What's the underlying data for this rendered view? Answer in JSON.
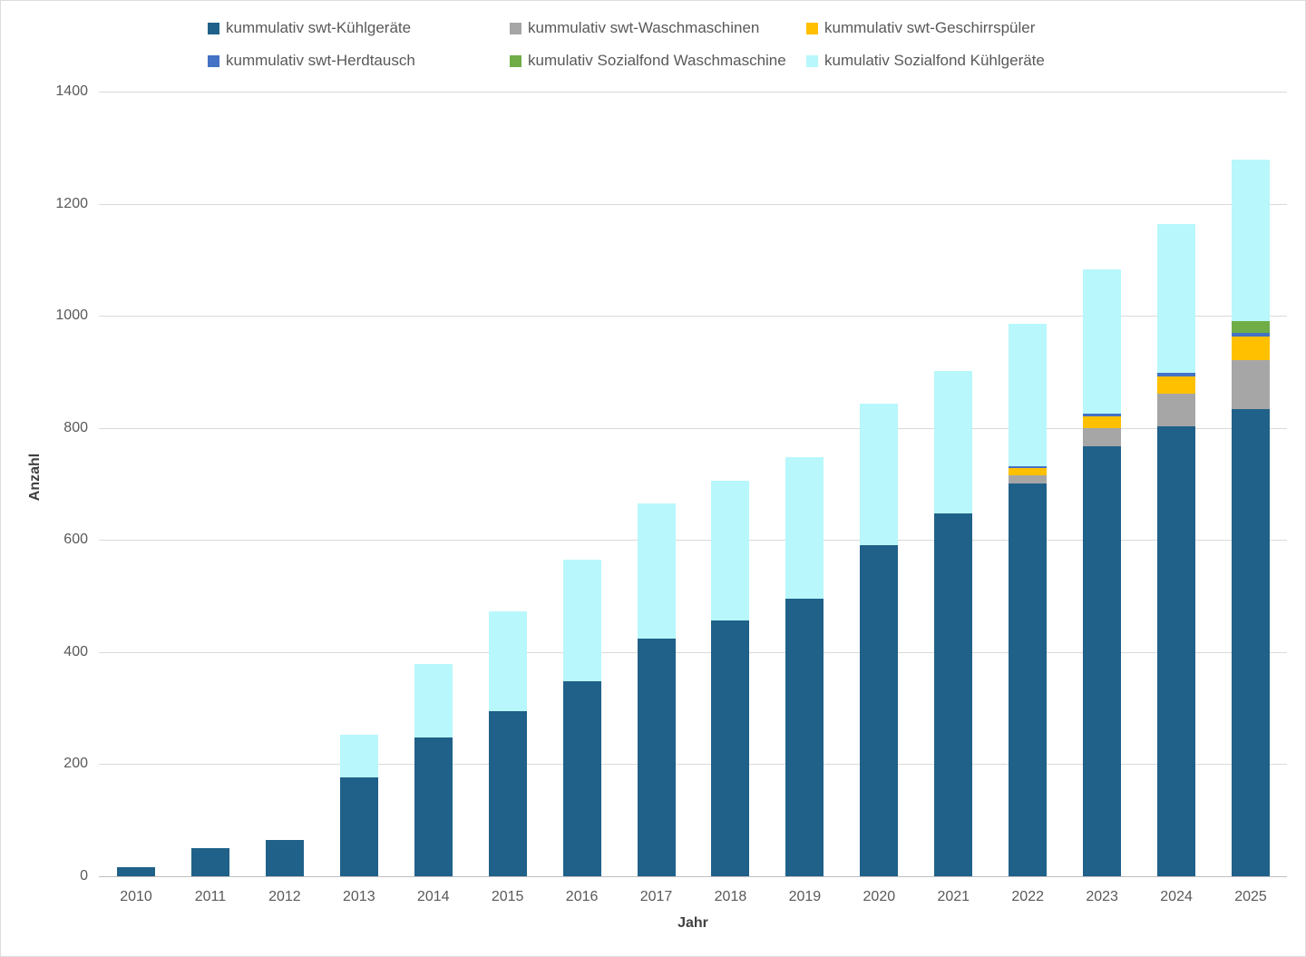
{
  "page": {
    "background": "#ffffff",
    "frame_border_color": "#dcdcdc",
    "gridline_color": "#d9d9d9",
    "axis_line_color": "#bfbfbf",
    "tick_label_color": "#595959",
    "axis_title_color": "#404040"
  },
  "chart_data": {
    "type": "bar",
    "stacked": true,
    "title": "",
    "xlabel": "Jahr",
    "ylabel": "Anzahl",
    "ylim": [
      0,
      1400
    ],
    "yticks": [
      0,
      200,
      400,
      600,
      800,
      1000,
      1200,
      1400
    ],
    "grid": true,
    "legend_position": "top",
    "categories": [
      "2010",
      "2011",
      "2012",
      "2013",
      "2014",
      "2015",
      "2016",
      "2017",
      "2018",
      "2019",
      "2020",
      "2021",
      "2022",
      "2023",
      "2024",
      "2025"
    ],
    "series": [
      {
        "name": "kummulativ swt-Kühlgeräte",
        "color": "#1f6189",
        "values": [
          16,
          50,
          65,
          176,
          248,
          295,
          348,
          424,
          456,
          496,
          590,
          647,
          701,
          767,
          803,
          834
        ]
      },
      {
        "name": "kummulativ swt-Waschmaschinen",
        "color": "#a6a6a6",
        "values": [
          0,
          0,
          0,
          0,
          0,
          0,
          0,
          0,
          0,
          0,
          0,
          0,
          15,
          33,
          58,
          87
        ]
      },
      {
        "name": "kummulativ swt-Geschirrspüler",
        "color": "#ffc000",
        "values": [
          0,
          0,
          0,
          0,
          0,
          0,
          0,
          0,
          0,
          0,
          0,
          0,
          13,
          21,
          31,
          42
        ]
      },
      {
        "name": "kummulativ swt-Herdtausch",
        "color": "#4472c4",
        "values": [
          0,
          0,
          0,
          0,
          0,
          0,
          0,
          0,
          0,
          0,
          0,
          0,
          3,
          5,
          6,
          7
        ]
      },
      {
        "name": "kumulativ Sozialfond Waschmaschine",
        "color": "#70ad47",
        "values": [
          0,
          0,
          0,
          0,
          0,
          0,
          0,
          0,
          0,
          0,
          0,
          0,
          0,
          0,
          0,
          20
        ]
      },
      {
        "name": "kumulativ Sozialfond Kühlgeräte",
        "color": "#b8f7fb",
        "values": [
          0,
          0,
          0,
          77,
          130,
          178,
          217,
          242,
          250,
          251,
          253,
          254,
          253,
          257,
          266,
          288
        ]
      }
    ],
    "totals": [
      16,
      50,
      65,
      253,
      378,
      473,
      565,
      666,
      706,
      747,
      843,
      901,
      985,
      1083,
      1164,
      1278
    ]
  },
  "layout_note": "stacked column chart, legend in two rows of three at top"
}
